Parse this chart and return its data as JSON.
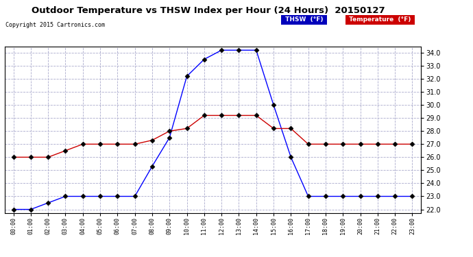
{
  "title": "Outdoor Temperature vs THSW Index per Hour (24 Hours)  20150127",
  "copyright": "Copyright 2015 Cartronics.com",
  "hours": [
    "00:00",
    "01:00",
    "02:00",
    "03:00",
    "04:00",
    "05:00",
    "06:00",
    "07:00",
    "08:00",
    "09:00",
    "10:00",
    "11:00",
    "12:00",
    "13:00",
    "14:00",
    "15:00",
    "16:00",
    "17:00",
    "18:00",
    "19:00",
    "20:00",
    "21:00",
    "22:00",
    "23:00"
  ],
  "thsw": [
    22.0,
    22.0,
    22.5,
    23.0,
    23.0,
    23.0,
    23.0,
    23.0,
    25.3,
    27.5,
    32.2,
    33.5,
    34.2,
    34.2,
    34.2,
    30.0,
    26.0,
    23.0,
    23.0,
    23.0,
    23.0,
    23.0,
    23.0,
    23.0
  ],
  "temp": [
    26.0,
    26.0,
    26.0,
    26.5,
    27.0,
    27.0,
    27.0,
    27.0,
    27.3,
    28.0,
    28.2,
    29.2,
    29.2,
    29.2,
    29.2,
    28.2,
    28.2,
    27.0,
    27.0,
    27.0,
    27.0,
    27.0,
    27.0,
    27.0
  ],
  "thsw_color": "#0000ff",
  "temp_color": "#cc0000",
  "ylim_min": 22.0,
  "ylim_max": 34.0,
  "ytick_step": 1.0,
  "bg_color": "#ffffff",
  "plot_bg_color": "#ffffff",
  "grid_color": "#aaaacc",
  "legend_thsw_bg": "#0000bb",
  "legend_temp_bg": "#cc0000",
  "legend_text_color": "#ffffff",
  "marker": "D",
  "markersize": 3.5
}
